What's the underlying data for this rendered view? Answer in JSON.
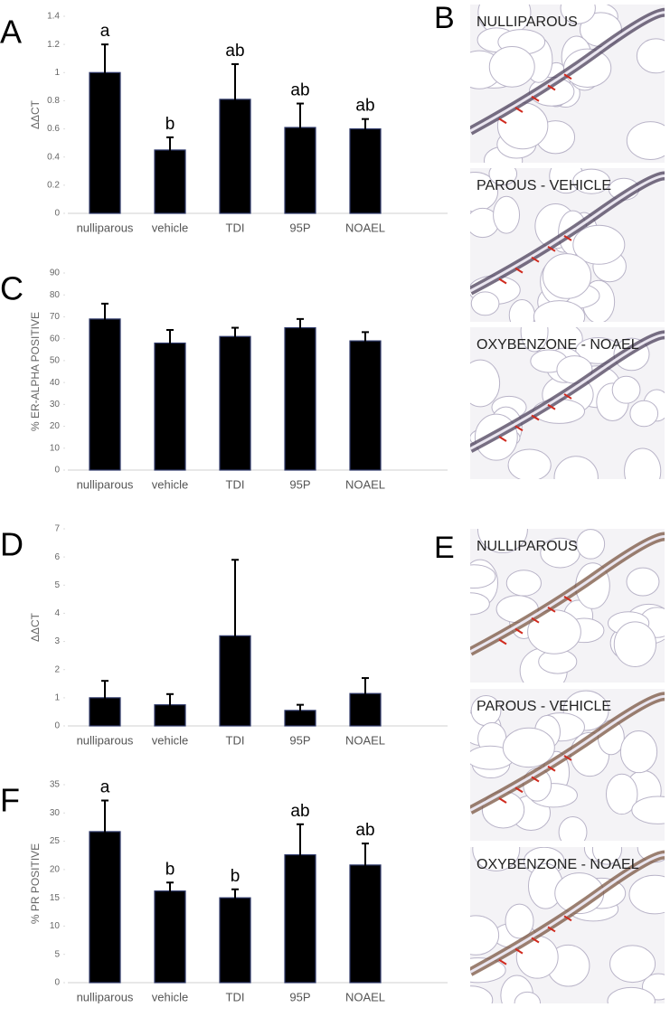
{
  "chart_data": [
    {
      "type": "bar",
      "panel": "A",
      "ylabel": "ΔΔCT",
      "categories": [
        "nulliparous",
        "vehicle",
        "TDI",
        "95P",
        "NOAEL"
      ],
      "values": [
        1.0,
        0.45,
        0.81,
        0.61,
        0.6
      ],
      "errors": [
        0.2,
        0.09,
        0.25,
        0.17,
        0.07
      ],
      "annotations": [
        "a",
        "b",
        "ab",
        "ab",
        "ab"
      ],
      "color": "#000000",
      "ylim": [
        0,
        1.4
      ],
      "yticks": [
        0,
        0.2,
        0.4,
        0.6,
        0.8,
        1,
        1.2,
        1.4
      ]
    },
    {
      "type": "bar",
      "panel": "C",
      "ylabel": "% ER-ALPHA POSITIVE",
      "categories": [
        "nulliparous",
        "vehicle",
        "TDI",
        "95P",
        "NOAEL"
      ],
      "values": [
        69,
        58,
        61,
        65,
        59
      ],
      "errors": [
        7,
        6,
        4,
        4,
        4
      ],
      "color": "#000000",
      "ylim": [
        0,
        90
      ],
      "yticks": [
        0,
        10,
        20,
        30,
        40,
        50,
        60,
        70,
        80,
        90
      ]
    },
    {
      "type": "bar",
      "panel": "D",
      "ylabel": "ΔΔCT",
      "categories": [
        "nulliparous",
        "vehicle",
        "TDI",
        "95P",
        "NOAEL"
      ],
      "values": [
        1.0,
        0.75,
        3.2,
        0.55,
        1.15
      ],
      "errors": [
        0.6,
        0.38,
        2.7,
        0.2,
        0.55
      ],
      "color": "#000000",
      "ylim": [
        0,
        7
      ],
      "yticks": [
        0,
        1,
        2,
        3,
        4,
        5,
        6,
        7
      ]
    },
    {
      "type": "bar",
      "panel": "F",
      "ylabel": "% PR POSITIVE",
      "categories": [
        "nulliparous",
        "vehicle",
        "TDI",
        "95P",
        "NOAEL"
      ],
      "values": [
        26.7,
        16.2,
        15.0,
        22.6,
        20.8
      ],
      "errors": [
        5.5,
        1.5,
        1.5,
        5.4,
        3.8
      ],
      "annotations": [
        "a",
        "b",
        "b",
        "ab",
        "ab"
      ],
      "color": "#000000",
      "ylim": [
        0,
        35
      ],
      "yticks": [
        0,
        5,
        10,
        15,
        20,
        25,
        30,
        35
      ]
    }
  ],
  "micrographs": [
    {
      "panel": "B",
      "captions": [
        "NULLIPAROUS",
        "PAROUS - VEHICLE",
        "OXYBENZONE - NOAEL"
      ]
    },
    {
      "panel": "E",
      "captions": [
        "NULLIPAROUS",
        "PAROUS - VEHICLE",
        "OXYBENZONE - NOAEL"
      ]
    }
  ]
}
